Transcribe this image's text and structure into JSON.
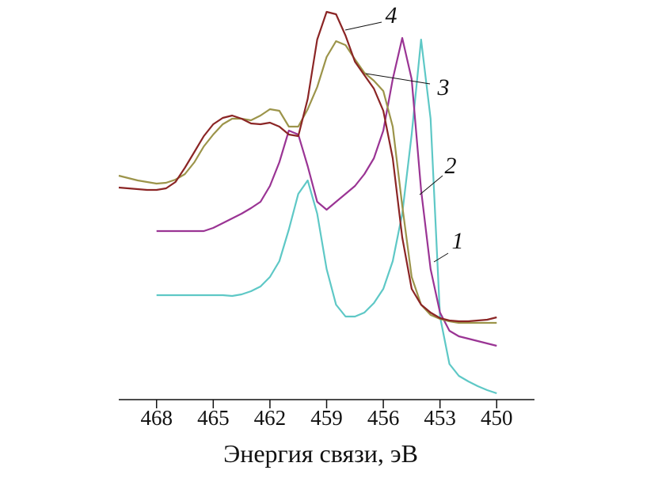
{
  "chart_data": {
    "type": "line",
    "x_label": "Энергия связи, эВ",
    "x": [
      470,
      469.5,
      469,
      468.5,
      468,
      467.5,
      467,
      466.5,
      466,
      465.5,
      465,
      464.5,
      464,
      463.5,
      463,
      462.5,
      462,
      461.5,
      461,
      460.5,
      460,
      459.5,
      459,
      458.5,
      458,
      457.5,
      457,
      456.5,
      456,
      455.5,
      455,
      454.5,
      454,
      453.5,
      453,
      452.5,
      452,
      451.5,
      451,
      450.5,
      450
    ],
    "xlim": [
      470,
      448
    ],
    "xticks": [
      468,
      465,
      462,
      459,
      456,
      453,
      450
    ],
    "ylim": [
      0,
      100
    ],
    "series": [
      {
        "name": "1",
        "color": "#5ec8c6",
        "values": [
          null,
          null,
          null,
          null,
          26.4,
          26.4,
          26.4,
          26.4,
          26.4,
          26.4,
          26.4,
          26.4,
          26.2,
          26.6,
          27.4,
          28.6,
          31,
          35,
          43,
          52,
          55.4,
          47,
          33,
          24,
          21,
          21,
          22,
          24.4,
          28,
          35,
          47,
          67,
          91,
          71,
          21,
          9,
          6,
          4.6,
          3.4,
          2.4,
          1.6
        ]
      },
      {
        "name": "2",
        "color": "#9a3494",
        "values": [
          null,
          null,
          null,
          null,
          42.6,
          42.6,
          42.6,
          42.6,
          42.6,
          42.6,
          43.4,
          44.6,
          45.8,
          47,
          48.4,
          50,
          54,
          60,
          68,
          67,
          59,
          50,
          48,
          50,
          52,
          54,
          57,
          61,
          68,
          81,
          91.4,
          81,
          53,
          33,
          22,
          17.4,
          16,
          15.4,
          14.8,
          14.2,
          13.6
        ]
      },
      {
        "name": "3",
        "color": "#9c944a",
        "values": [
          56.6,
          56,
          55.4,
          55,
          54.6,
          54.8,
          55.6,
          57,
          60,
          64,
          67,
          69.6,
          71,
          71,
          70.6,
          71.8,
          73.4,
          73,
          69,
          69,
          73.4,
          79,
          86.6,
          90.6,
          89.6,
          86,
          82.6,
          80.6,
          78,
          69,
          49,
          31,
          24,
          21.4,
          20.4,
          19.8,
          19.4,
          19.4,
          19.4,
          19.4,
          19.4
        ]
      },
      {
        "name": "4",
        "color": "#8b2525",
        "values": [
          53.6,
          53.4,
          53.2,
          53,
          53,
          53.4,
          55,
          58.6,
          62.6,
          66.6,
          69.6,
          71.2,
          71.8,
          71,
          69.8,
          69.6,
          70,
          69,
          67,
          66.6,
          76,
          91,
          98,
          97.4,
          92,
          85.4,
          82,
          78.6,
          73,
          61,
          41,
          28,
          24,
          22,
          20.6,
          20,
          19.8,
          19.8,
          20,
          20.2,
          20.8
        ]
      }
    ]
  }
}
